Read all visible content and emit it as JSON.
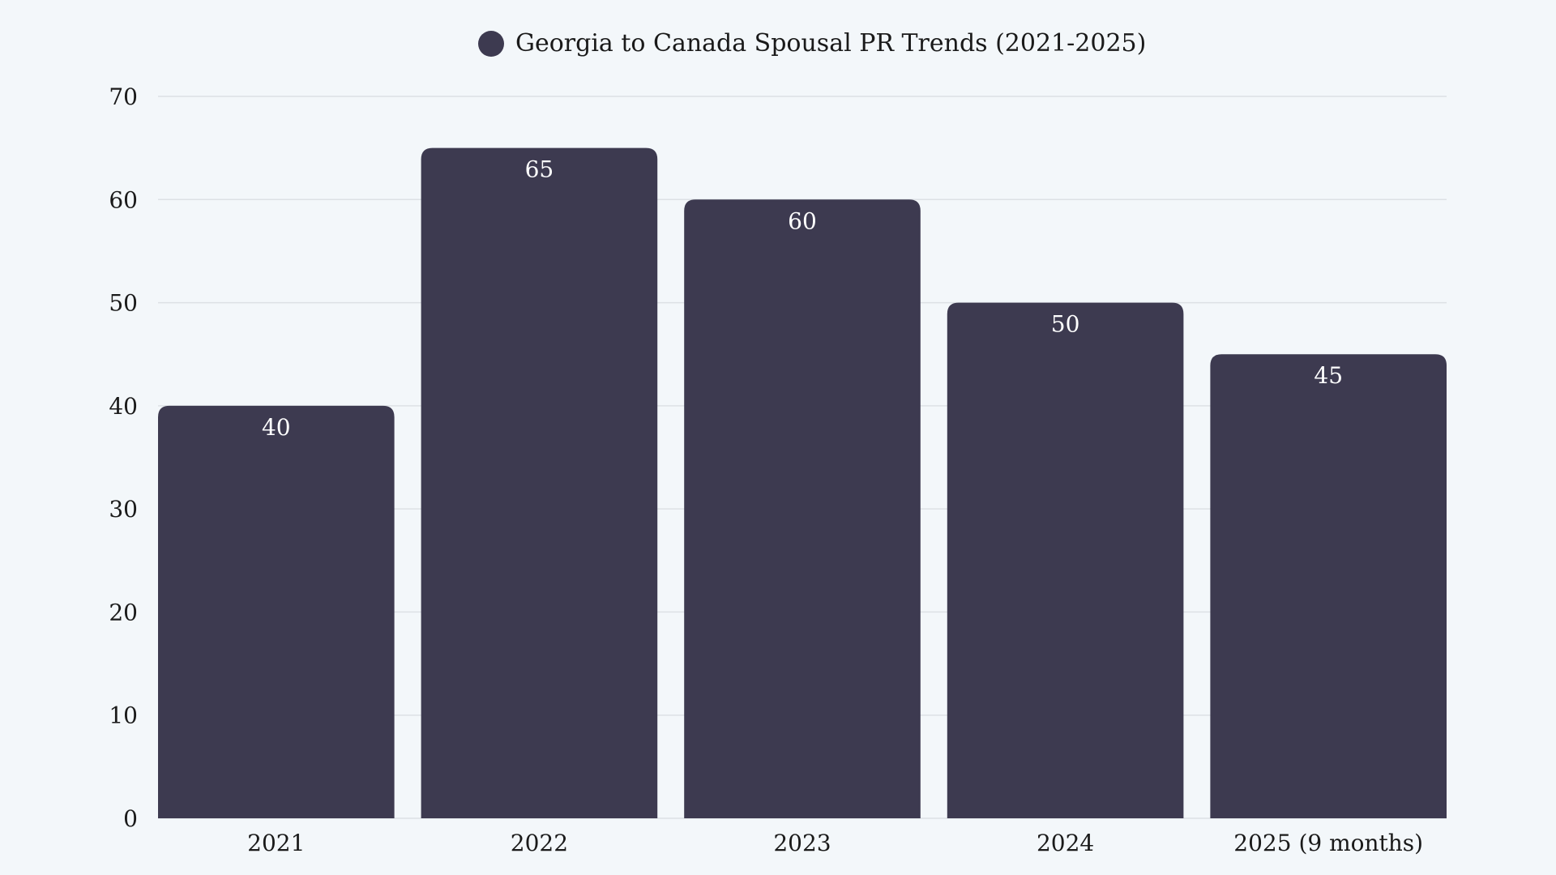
{
  "chart_data": {
    "type": "bar",
    "categories": [
      "2021",
      "2022",
      "2023",
      "2024",
      "2025 (9 months)"
    ],
    "series": [
      {
        "name": "Georgia to Canada Spousal PR Trends (2021-2025)",
        "values": [
          40,
          65,
          60,
          50,
          45
        ]
      }
    ],
    "ylim": [
      0,
      70
    ],
    "yticks": [
      0,
      10,
      20,
      30,
      40,
      50,
      60,
      70
    ],
    "grid": true,
    "legend_position": "top-center",
    "data_labels": true,
    "bar_color": "#3d3a50",
    "background_color": "#f3f7fa",
    "xlabel": "",
    "ylabel": ""
  }
}
